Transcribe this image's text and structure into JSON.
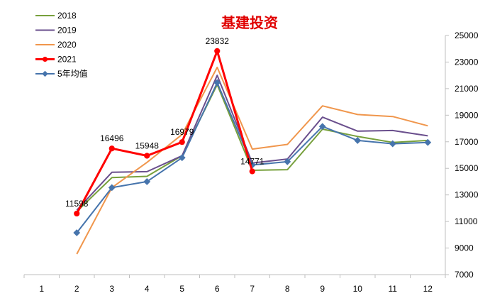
{
  "chart_data": {
    "type": "line",
    "title": "基建投资",
    "x": [
      "1",
      "2",
      "3",
      "4",
      "5",
      "6",
      "7",
      "8",
      "9",
      "10",
      "11",
      "12"
    ],
    "ylim": [
      7000,
      25000
    ],
    "yticks": [
      7000,
      9000,
      11000,
      13000,
      15000,
      17000,
      19000,
      21000,
      23000,
      25000
    ],
    "y_axis_side": "right",
    "grid": false,
    "legend_position": "top-left",
    "series": [
      {
        "name": "2018",
        "color": "#77a03c",
        "marker": "none",
        "values": [
          null,
          11750,
          14300,
          14400,
          15950,
          21300,
          14850,
          14900,
          17950,
          17400,
          16950,
          17100
        ]
      },
      {
        "name": "2019",
        "color": "#6a4f8d",
        "marker": "none",
        "values": [
          null,
          11850,
          14700,
          14750,
          15950,
          22000,
          15400,
          15700,
          18850,
          17800,
          17850,
          17450
        ]
      },
      {
        "name": "2020",
        "color": "#f0964c",
        "marker": "none",
        "values": [
          null,
          8550,
          13550,
          15450,
          17550,
          22600,
          16450,
          16800,
          19700,
          19050,
          18900,
          18200
        ]
      },
      {
        "name": "2021",
        "color": "#ff0000",
        "marker": "circle",
        "values": [
          null,
          11598,
          16496,
          15948,
          16979,
          23832,
          14771,
          null,
          null,
          null,
          null,
          null
        ],
        "data_labels": [
          "",
          "11598",
          "16496",
          "15948",
          "16979",
          "23832",
          "14771",
          "",
          "",
          "",
          "",
          ""
        ]
      },
      {
        "name": "5年均值",
        "color": "#4674ac",
        "marker": "diamond",
        "values": [
          null,
          10150,
          13550,
          14000,
          15800,
          21450,
          15250,
          15500,
          18150,
          17100,
          16850,
          16950
        ]
      }
    ]
  }
}
